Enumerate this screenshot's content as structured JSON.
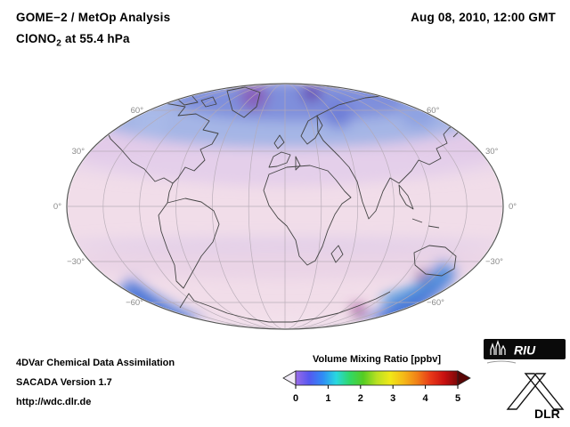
{
  "header": {
    "title": "GOME−2 / MetOp Analysis",
    "timestamp": "Aug 08, 2010, 12:00 GMT",
    "species_prefix": "ClONO",
    "species_sub": "2",
    "species_suffix": " at 55.4 hPa"
  },
  "map": {
    "lat_labels": [
      "60°",
      "30°",
      "0°",
      "−30°",
      "−60°"
    ],
    "palette": {
      "low_color": "#f1dde9",
      "elevated_color": "#9fb2e6",
      "collar_color": "#5f85dc",
      "spot_color": "#a04898"
    }
  },
  "footer": {
    "line1": "4DVar Chemical Data Assimilation",
    "line2": "SACADA Version 1.7",
    "line3": "http://wdc.dlr.de"
  },
  "colorbar": {
    "title": "Volume Mixing Ratio [ppbv]",
    "ticks": [
      "0",
      "1",
      "2",
      "3",
      "4",
      "5"
    ],
    "gradient": [
      "#9a6ae8",
      "#5558f0",
      "#2f8cf5",
      "#28d8e0",
      "#30d868",
      "#55cc22",
      "#b8e022",
      "#f0e818",
      "#f5b818",
      "#f08018",
      "#e83818",
      "#c81010",
      "#7a0808"
    ],
    "arrow_left_color": "#f2ecf8",
    "arrow_right_color": "#5a0606"
  },
  "logos": {
    "riu": "RIU",
    "dlr": "DLR"
  },
  "chart_data": {
    "type": "heatmap",
    "title": "GOME−2 / MetOp Analysis",
    "subtitle": "ClONO2 at 55.4 hPa",
    "timestamp": "Aug 08, 2010, 12:00 GMT",
    "variable": "ClONO2 volume mixing ratio",
    "units": "ppbv",
    "pressure_level_hPa": 55.4,
    "projection": "Mollweide global map with graticule every 30 degrees",
    "lat_grid_labels": [
      60,
      30,
      0,
      -30,
      -60
    ],
    "colorbar": {
      "label": "Volume Mixing Ratio [ppbv]",
      "min": 0,
      "max": 5,
      "ticks": [
        0,
        1,
        2,
        3,
        4,
        5
      ],
      "style": "rainbow, arrow end caps"
    },
    "pattern": [
      {
        "region": "Arctic / high northern latitudes (60-90N)",
        "approx_value_ppbv": 0.9,
        "color": "blue with purple-magenta maxima"
      },
      {
        "region": "Northern mid-latitudes (30-60N)",
        "approx_value_ppbv": 0.4,
        "color": "lavender-pink"
      },
      {
        "region": "Tropics (30S-30N)",
        "approx_value_ppbv": 0.15,
        "color": "pale pink (low)"
      },
      {
        "region": "Southern mid-latitudes (30-55S)",
        "approx_value_ppbv": 0.35,
        "color": "pale lavender bands"
      },
      {
        "region": "Antarctic collar (55-70S)",
        "approx_value_ppbv": 1.3,
        "color": "strong blue ring encircling Antarctica with small magenta maxima"
      },
      {
        "region": "Antarctic interior (70-90S)",
        "approx_value_ppbv": 0.2,
        "color": "pale pink (low)"
      }
    ],
    "annotations": [
      "4DVar Chemical Data Assimilation",
      "SACADA Version 1.7",
      "http://wdc.dlr.de"
    ]
  }
}
